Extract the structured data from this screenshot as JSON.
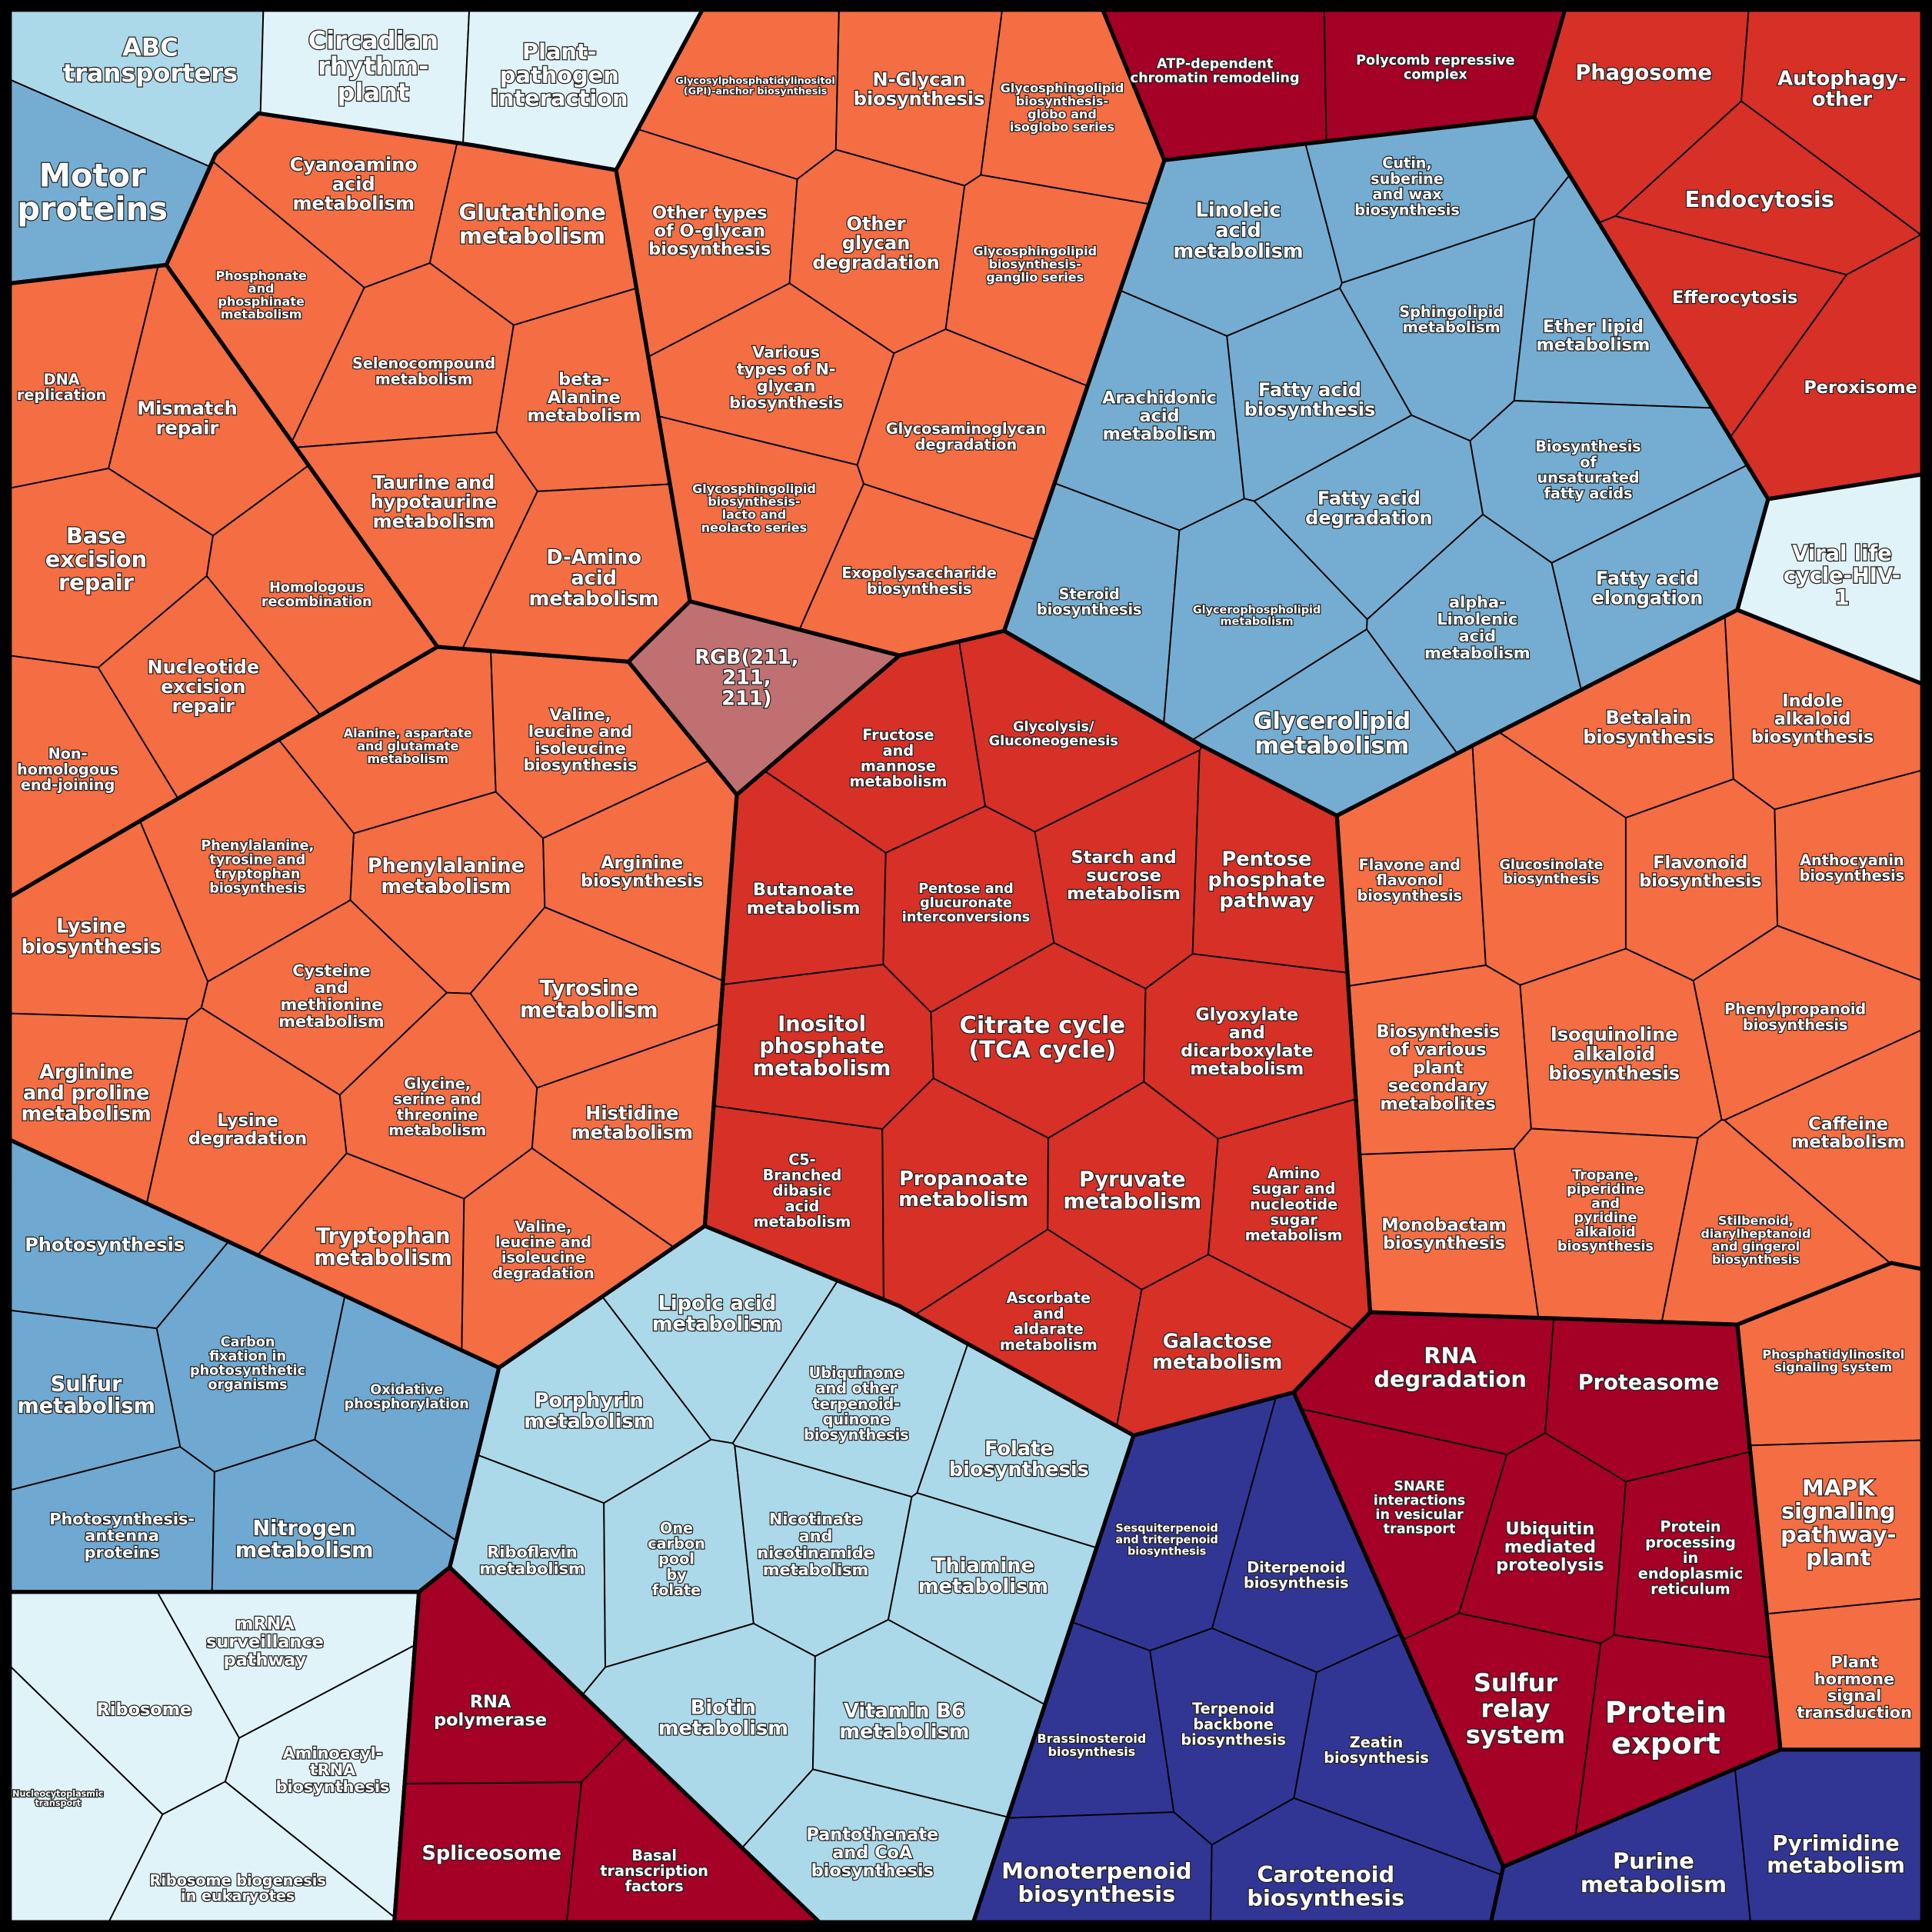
{
  "groups": [
    {
      "color": "#e0f3f8",
      "cells": [
        {
          "lines": [
            "ABC",
            "transporters"
          ],
          "color": "#abd9e9"
        },
        {
          "lines": [
            "Circadian",
            "rhythm-",
            "plant"
          ]
        },
        {
          "lines": [
            "Plant-",
            "pathogen",
            "interaction"
          ]
        },
        {
          "lines": [
            "Motor",
            "proteins"
          ],
          "color": "#74add1"
        }
      ]
    },
    {
      "color": "#f46d43",
      "cells": [
        {
          "lines": [
            "DNA",
            "replication"
          ]
        },
        {
          "lines": [
            "Mismatch",
            "repair"
          ]
        },
        {
          "lines": [
            "Base",
            "excision",
            "repair"
          ]
        },
        {
          "lines": [
            "Homologous",
            "recombination"
          ]
        },
        {
          "lines": [
            "Nucleotide",
            "excision",
            "repair"
          ]
        },
        {
          "lines": [
            "Non-",
            "homologous",
            "end-joining"
          ]
        }
      ]
    },
    {
      "color": "#f46d43",
      "cells": [
        {
          "lines": [
            "Cyanoamino",
            "acid",
            "metabolism"
          ]
        },
        {
          "lines": [
            "Glutathione",
            "metabolism"
          ]
        },
        {
          "lines": [
            "Phosphonate",
            "and",
            "phosphinate",
            "metabolism"
          ]
        },
        {
          "lines": [
            "Selenocompound",
            "metabolism"
          ]
        },
        {
          "lines": [
            "beta-",
            "Alanine",
            "metabolism"
          ]
        },
        {
          "lines": [
            "Taurine and",
            "hypotaurine",
            "metabolism"
          ]
        },
        {
          "lines": [
            "D-Amino",
            "acid",
            "metabolism"
          ]
        }
      ]
    },
    {
      "color": "#f46d43",
      "cells": [
        {
          "lines": [
            "Glycosylphosphatidylinositol",
            "(GPI)-anchor biosynthesis"
          ]
        },
        {
          "lines": [
            "N-Glycan",
            "biosynthesis"
          ]
        },
        {
          "lines": [
            "Glycosphingolipid",
            "biosynthesis-",
            "globo and",
            "isoglobo series"
          ]
        },
        {
          "lines": [
            "Other types",
            "of O-glycan",
            "biosynthesis"
          ]
        },
        {
          "lines": [
            "Other",
            "glycan",
            "degradation"
          ]
        },
        {
          "lines": [
            "Glycosphingolipid",
            "biosynthesis-",
            "ganglio series"
          ]
        },
        {
          "lines": [
            "Various",
            "types of N-",
            "glycan",
            "biosynthesis"
          ]
        },
        {
          "lines": [
            "Glycosaminoglycan",
            "degradation"
          ]
        },
        {
          "lines": [
            "Glycosphingolipid",
            "biosynthesis-",
            "lacto and",
            "neolacto series"
          ]
        },
        {
          "lines": [
            "Exopolysaccharide",
            "biosynthesis"
          ]
        }
      ]
    },
    {
      "color": "#c07070",
      "cells": [
        {
          "lines": [
            "RGB(211,",
            "211,",
            "211)"
          ]
        }
      ]
    },
    {
      "color": "#a50026",
      "cells": [
        {
          "lines": [
            "ATP-dependent",
            "chromatin remodeling"
          ]
        },
        {
          "lines": [
            "Polycomb repressive",
            "complex"
          ]
        }
      ]
    },
    {
      "color": "#d73027",
      "cells": [
        {
          "lines": [
            "Phagosome"
          ]
        },
        {
          "lines": [
            "Autophagy-",
            "other"
          ]
        },
        {
          "lines": [
            "Endocytosis"
          ]
        },
        {
          "lines": [
            "Efferocytosis"
          ]
        },
        {
          "lines": [
            "Peroxisome"
          ]
        }
      ]
    },
    {
      "color": "#74add1",
      "cells": [
        {
          "lines": [
            "Linoleic",
            "acid",
            "metabolism"
          ]
        },
        {
          "lines": [
            "Cutin,",
            "suberine",
            "and wax",
            "biosynthesis"
          ]
        },
        {
          "lines": [
            "Sphingolipid",
            "metabolism"
          ]
        },
        {
          "lines": [
            "Ether lipid",
            "metabolism"
          ]
        },
        {
          "lines": [
            "Arachidonic",
            "acid",
            "metabolism"
          ]
        },
        {
          "lines": [
            "Fatty acid",
            "biosynthesis"
          ]
        },
        {
          "lines": [
            "Biosynthesis",
            "of",
            "unsaturated",
            "fatty acids"
          ]
        },
        {
          "lines": [
            "Fatty acid",
            "degradation"
          ]
        },
        {
          "lines": [
            "Steroid",
            "biosynthesis"
          ]
        },
        {
          "lines": [
            "Glycerophospholipid",
            "metabolism"
          ]
        },
        {
          "lines": [
            "alpha-",
            "Linolenic",
            "acid",
            "metabolism"
          ]
        },
        {
          "lines": [
            "Fatty acid",
            "elongation"
          ]
        },
        {
          "lines": [
            "Glycerolipid",
            "metabolism"
          ]
        }
      ]
    },
    {
      "color": "#e0f3f8",
      "cells": [
        {
          "lines": [
            "Viral life",
            "cycle-HIV-",
            "1"
          ]
        }
      ]
    },
    {
      "color": "#d73027",
      "cells": [
        {
          "lines": [
            "Fructose",
            "and",
            "mannose",
            "metabolism"
          ]
        },
        {
          "lines": [
            "Glycolysis/",
            "Gluconeogenesis"
          ]
        },
        {
          "lines": [
            "Butanoate",
            "metabolism"
          ]
        },
        {
          "lines": [
            "Pentose and",
            "glucuronate",
            "interconversions"
          ]
        },
        {
          "lines": [
            "Starch and",
            "sucrose",
            "metabolism"
          ]
        },
        {
          "lines": [
            "Pentose",
            "phosphate",
            "pathway"
          ]
        },
        {
          "lines": [
            "Inositol",
            "phosphate",
            "metabolism"
          ]
        },
        {
          "lines": [
            "Citrate cycle",
            "(TCA cycle)"
          ]
        },
        {
          "lines": [
            "Glyoxylate",
            "and",
            "dicarboxylate",
            "metabolism"
          ]
        },
        {
          "lines": [
            "C5-",
            "Branched",
            "dibasic",
            "acid",
            "metabolism"
          ]
        },
        {
          "lines": [
            "Propanoate",
            "metabolism"
          ]
        },
        {
          "lines": [
            "Pyruvate",
            "metabolism"
          ]
        },
        {
          "lines": [
            "Amino",
            "sugar and",
            "nucleotide",
            "sugar",
            "metabolism"
          ]
        },
        {
          "lines": [
            "Ascorbate",
            "and",
            "aldarate",
            "metabolism"
          ]
        },
        {
          "lines": [
            "Galactose",
            "metabolism"
          ]
        }
      ]
    },
    {
      "color": "#f46d43",
      "cells": [
        {
          "lines": [
            "Alanine, aspartate",
            "and glutamate",
            "metabolism"
          ]
        },
        {
          "lines": [
            "Valine,",
            "leucine and",
            "isoleucine",
            "biosynthesis"
          ]
        },
        {
          "lines": [
            "Phenylalanine,",
            "tyrosine and",
            "tryptophan",
            "biosynthesis"
          ]
        },
        {
          "lines": [
            "Phenylalanine",
            "metabolism"
          ]
        },
        {
          "lines": [
            "Arginine",
            "biosynthesis"
          ]
        },
        {
          "lines": [
            "Lysine",
            "biosynthesis"
          ]
        },
        {
          "lines": [
            "Cysteine",
            "and",
            "methionine",
            "metabolism"
          ]
        },
        {
          "lines": [
            "Tyrosine",
            "metabolism"
          ]
        },
        {
          "lines": [
            "Arginine",
            "and proline",
            "metabolism"
          ]
        },
        {
          "lines": [
            "Lysine",
            "degradation"
          ]
        },
        {
          "lines": [
            "Glycine,",
            "serine and",
            "threonine",
            "metabolism"
          ]
        },
        {
          "lines": [
            "Histidine",
            "metabolism"
          ]
        },
        {
          "lines": [
            "Tryptophan",
            "metabolism"
          ]
        },
        {
          "lines": [
            "Valine,",
            "leucine and",
            "isoleucine",
            "degradation"
          ]
        }
      ]
    },
    {
      "color": "#6fa8d0",
      "cells": [
        {
          "lines": [
            "Photosynthesis"
          ]
        },
        {
          "lines": [
            "Sulfur",
            "metabolism"
          ]
        },
        {
          "lines": [
            "Carbon",
            "fixation in",
            "photosynthetic",
            "organisms"
          ]
        },
        {
          "lines": [
            "Oxidative",
            "phosphorylation"
          ]
        },
        {
          "lines": [
            "Photosynthesis-",
            "antenna",
            "proteins"
          ]
        },
        {
          "lines": [
            "Nitrogen",
            "metabolism"
          ]
        }
      ]
    },
    {
      "color": "#abd9e9",
      "cells": [
        {
          "lines": [
            "Lipoic acid",
            "metabolism"
          ]
        },
        {
          "lines": [
            "Porphyrin",
            "metabolism"
          ]
        },
        {
          "lines": [
            "Ubiquinone",
            "and other",
            "terpenoid-",
            "quinone",
            "biosynthesis"
          ]
        },
        {
          "lines": [
            "Folate",
            "biosynthesis"
          ]
        },
        {
          "lines": [
            "Riboflavin",
            "metabolism"
          ]
        },
        {
          "lines": [
            "One",
            "carbon",
            "pool",
            "by",
            "folate"
          ]
        },
        {
          "lines": [
            "Nicotinate",
            "and",
            "nicotinamide",
            "metabolism"
          ]
        },
        {
          "lines": [
            "Thiamine",
            "metabolism"
          ]
        },
        {
          "lines": [
            "Biotin",
            "metabolism"
          ]
        },
        {
          "lines": [
            "Vitamin B6",
            "metabolism"
          ]
        },
        {
          "lines": [
            "Pantothenate",
            "and CoA",
            "biosynthesis"
          ]
        }
      ]
    },
    {
      "color": "#a50026",
      "cells": [
        {
          "lines": [
            "RNA",
            "polymerase"
          ]
        },
        {
          "lines": [
            "Spliceosome"
          ]
        },
        {
          "lines": [
            "Basal",
            "transcription",
            "factors"
          ]
        }
      ]
    },
    {
      "color": "#e0f3f8",
      "cells": [
        {
          "lines": [
            "mRNA",
            "surveillance",
            "pathway"
          ]
        },
        {
          "lines": [
            "Ribosome"
          ]
        },
        {
          "lines": [
            "Aminoacyl-",
            "tRNA",
            "biosynthesis"
          ]
        },
        {
          "lines": [
            "Nucleocytoplasmic",
            "transport"
          ]
        },
        {
          "lines": [
            "Ribosome biogenesis",
            "in eukaryotes"
          ]
        }
      ]
    },
    {
      "color": "#313695",
      "cells": [
        {
          "lines": [
            "Sesquiterpenoid",
            "and triterpenoid",
            "biosynthesis"
          ]
        },
        {
          "lines": [
            "Diterpenoid",
            "biosynthesis"
          ]
        },
        {
          "lines": [
            "Brassinosteroid",
            "biosynthesis"
          ]
        },
        {
          "lines": [
            "Terpenoid",
            "backbone",
            "biosynthesis"
          ]
        },
        {
          "lines": [
            "Zeatin",
            "biosynthesis"
          ]
        },
        {
          "lines": [
            "Monoterpenoid",
            "biosynthesis"
          ]
        },
        {
          "lines": [
            "Carotenoid",
            "biosynthesis"
          ]
        }
      ]
    },
    {
      "color": "#a50026",
      "cells": [
        {
          "lines": [
            "RNA",
            "degradation"
          ]
        },
        {
          "lines": [
            "Proteasome"
          ]
        },
        {
          "lines": [
            "SNARE",
            "interactions",
            "in vesicular",
            "transport"
          ]
        },
        {
          "lines": [
            "Ubiquitin",
            "mediated",
            "proteolysis"
          ]
        },
        {
          "lines": [
            "Protein",
            "processing",
            "in",
            "endoplasmic",
            "reticulum"
          ]
        },
        {
          "lines": [
            "Sulfur",
            "relay",
            "system"
          ]
        },
        {
          "lines": [
            "Protein",
            "export"
          ]
        }
      ]
    },
    {
      "color": "#313695",
      "cells": [
        {
          "lines": [
            "Purine",
            "metabolism"
          ]
        },
        {
          "lines": [
            "Pyrimidine",
            "metabolism"
          ]
        }
      ]
    },
    {
      "color": "#f46d43",
      "cells": [
        {
          "lines": [
            "Phosphatidylinositol",
            "signaling system"
          ]
        },
        {
          "lines": [
            "MAPK",
            "signaling",
            "pathway-",
            "plant"
          ]
        },
        {
          "lines": [
            "Plant",
            "hormone",
            "signal",
            "transduction"
          ]
        }
      ]
    },
    {
      "color": "#f46d43",
      "cells": [
        {
          "lines": [
            "Betalain",
            "biosynthesis"
          ]
        },
        {
          "lines": [
            "Indole",
            "alkaloid",
            "biosynthesis"
          ]
        },
        {
          "lines": [
            "Flavone and",
            "flavonol",
            "biosynthesis"
          ]
        },
        {
          "lines": [
            "Glucosinolate",
            "biosynthesis"
          ]
        },
        {
          "lines": [
            "Flavonoid",
            "biosynthesis"
          ]
        },
        {
          "lines": [
            "Anthocyanin",
            "biosynthesis"
          ]
        },
        {
          "lines": [
            "Biosynthesis",
            "of various",
            "plant",
            "secondary",
            "metabolites"
          ]
        },
        {
          "lines": [
            "Isoquinoline",
            "alkaloid",
            "biosynthesis"
          ]
        },
        {
          "lines": [
            "Phenylpropanoid",
            "biosynthesis"
          ]
        },
        {
          "lines": [
            "Caffeine",
            "metabolism"
          ]
        },
        {
          "lines": [
            "Monobactam",
            "biosynthesis"
          ]
        },
        {
          "lines": [
            "Tropane,",
            "piperidine",
            "and",
            "pyridine",
            "alkaloid",
            "biosynthesis"
          ]
        },
        {
          "lines": [
            "Stilbenoid,",
            "diarylheptanoid",
            "and gingerol",
            "biosynthesis"
          ]
        }
      ]
    }
  ]
}
